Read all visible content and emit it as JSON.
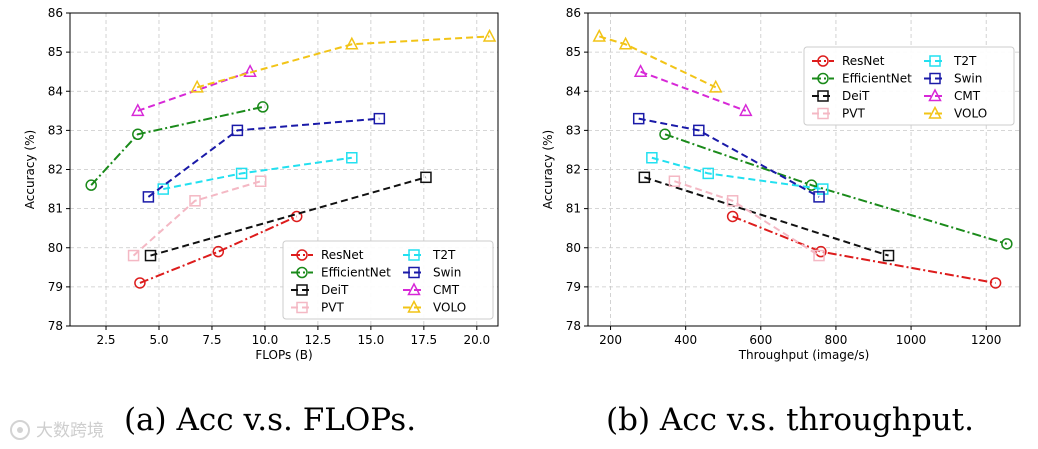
{
  "chart_data": [
    {
      "type": "line",
      "caption": "(a) Acc v.s. FLOPs.",
      "xlabel": "FLOPs (B)",
      "ylabel": "Accuracy (%)",
      "xlim": [
        0.8,
        21.0
      ],
      "ylim": [
        78,
        86
      ],
      "xticks": [
        2.5,
        5.0,
        7.5,
        10.0,
        12.5,
        15.0,
        17.5,
        20.0
      ],
      "xtick_labels": [
        "2.5",
        "5.0",
        "7.5",
        "10.0",
        "12.5",
        "15.0",
        "17.5",
        "20.0"
      ],
      "yticks": [
        78,
        79,
        80,
        81,
        82,
        83,
        84,
        85,
        86
      ],
      "ytick_labels": [
        "78",
        "79",
        "80",
        "81",
        "82",
        "83",
        "84",
        "85",
        "86"
      ],
      "grid": true,
      "legend_position": "lower-right",
      "series": [
        {
          "name": "ResNet",
          "x": [
            4.1,
            7.8,
            11.5
          ],
          "y": [
            79.1,
            79.9,
            80.8
          ]
        },
        {
          "name": "EfficientNet",
          "x": [
            1.8,
            4.0,
            9.9
          ],
          "y": [
            81.6,
            82.9,
            83.6
          ]
        },
        {
          "name": "DeiT",
          "x": [
            4.6,
            17.6
          ],
          "y": [
            79.8,
            81.8
          ]
        },
        {
          "name": "PVT",
          "x": [
            3.8,
            6.7,
            9.8
          ],
          "y": [
            79.8,
            81.2,
            81.7
          ]
        },
        {
          "name": "T2T",
          "x": [
            5.2,
            8.9,
            14.1
          ],
          "y": [
            81.5,
            81.9,
            82.3
          ]
        },
        {
          "name": "Swin",
          "x": [
            4.5,
            8.7,
            15.4
          ],
          "y": [
            81.3,
            83.0,
            83.3
          ]
        },
        {
          "name": "CMT",
          "x": [
            4.0,
            9.3
          ],
          "y": [
            83.5,
            84.5
          ]
        },
        {
          "name": "VOLO",
          "x": [
            6.8,
            14.1,
            20.6
          ],
          "y": [
            84.1,
            85.2,
            85.4
          ]
        }
      ]
    },
    {
      "type": "line",
      "caption": "(b) Acc v.s. throughput.",
      "xlabel": "Throughput (image/s)",
      "ylabel": "Accuracy (%)",
      "xlim": [
        140,
        1290
      ],
      "ylim": [
        78,
        86
      ],
      "xticks": [
        200,
        400,
        600,
        800,
        1000,
        1200
      ],
      "xtick_labels": [
        "200",
        "400",
        "600",
        "800",
        "1000",
        "1200"
      ],
      "yticks": [
        78,
        79,
        80,
        81,
        82,
        83,
        84,
        85,
        86
      ],
      "ytick_labels": [
        "78",
        "79",
        "80",
        "81",
        "82",
        "83",
        "84",
        "85",
        "86"
      ],
      "grid": true,
      "legend_position": "top-right",
      "series": [
        {
          "name": "ResNet",
          "x": [
            525,
            760,
            1225
          ],
          "y": [
            80.8,
            79.9,
            79.1
          ]
        },
        {
          "name": "EfficientNet",
          "x": [
            345,
            735,
            1255
          ],
          "y": [
            82.9,
            81.6,
            80.1
          ]
        },
        {
          "name": "DeiT",
          "x": [
            290,
            940
          ],
          "y": [
            81.8,
            79.8
          ]
        },
        {
          "name": "PVT",
          "x": [
            370,
            525,
            755
          ],
          "y": [
            81.7,
            81.2,
            79.8
          ]
        },
        {
          "name": "T2T",
          "x": [
            310,
            460,
            765
          ],
          "y": [
            82.3,
            81.9,
            81.5
          ]
        },
        {
          "name": "Swin",
          "x": [
            275,
            435,
            755
          ],
          "y": [
            83.3,
            83.0,
            81.3
          ]
        },
        {
          "name": "CMT",
          "x": [
            280,
            560
          ],
          "y": [
            84.5,
            83.5
          ]
        },
        {
          "name": "VOLO",
          "x": [
            170,
            240,
            480
          ],
          "y": [
            85.4,
            85.2,
            84.1
          ]
        }
      ]
    }
  ],
  "styles": {
    "ResNet": {
      "color": "#dd1c1c",
      "marker": "circle",
      "dash": "dashdot"
    },
    "EfficientNet": {
      "color": "#1a8a1a",
      "marker": "circle",
      "dash": "dashdot"
    },
    "DeiT": {
      "color": "#111111",
      "marker": "square",
      "dash": "dashed"
    },
    "PVT": {
      "color": "#f4b8c4",
      "marker": "square",
      "dash": "dashed"
    },
    "T2T": {
      "color": "#22e0f0",
      "marker": "square",
      "dash": "dashed"
    },
    "Swin": {
      "color": "#1a1aa8",
      "marker": "square",
      "dash": "dashed"
    },
    "CMT": {
      "color": "#d728d7",
      "marker": "triangle",
      "dash": "dashed"
    },
    "VOLO": {
      "color": "#f2c417",
      "marker": "triangle",
      "dash": "dashed"
    }
  },
  "watermark": "大数跨境"
}
